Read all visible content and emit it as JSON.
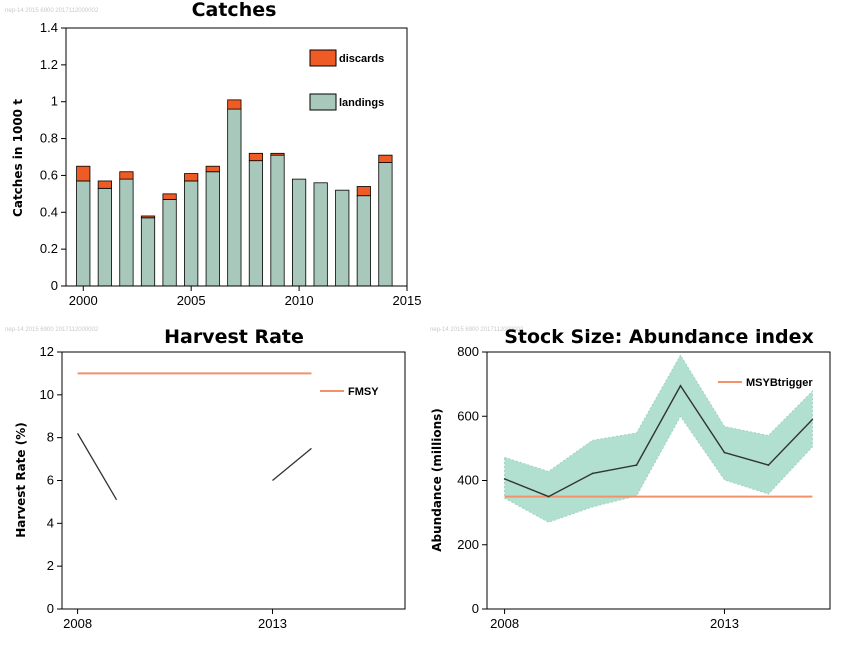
{
  "watermarks": {
    "catches": "nep-14 2015 6900 2017112000002",
    "harvest": "nep-14 2015 6900 2017112000002",
    "stock": "nep-14 2015 6900 2017112000002"
  },
  "colors": {
    "landings": "#a8c8bb",
    "discards": "#ef5b25",
    "reference_line": "#f2926b",
    "band": "#b1e0d0",
    "series_line": "#333333"
  },
  "chart_data": [
    {
      "type": "bar",
      "title": "Catches",
      "ylabel": "Catches in 1000 t",
      "xlim": [
        1999.2,
        2015
      ],
      "ylim": [
        0,
        1.4
      ],
      "x_ticks": [
        2000,
        2005,
        2010,
        2015
      ],
      "y_ticks": [
        0,
        0.2,
        0.4,
        0.6,
        0.8,
        1,
        1.2,
        1.4
      ],
      "y_tick_labels": [
        "0",
        "0.2",
        "0.4",
        "0.6",
        "0.8",
        "1",
        "1.2",
        "1.4"
      ],
      "legend_position": "top-right",
      "categories": [
        2000,
        2001,
        2002,
        2003,
        2004,
        2005,
        2006,
        2007,
        2008,
        2009,
        2010,
        2011,
        2012,
        2013,
        2014
      ],
      "series": [
        {
          "name": "landings",
          "values": [
            0.57,
            0.53,
            0.58,
            0.37,
            0.47,
            0.57,
            0.62,
            0.96,
            0.68,
            0.71,
            0.58,
            0.56,
            0.52,
            0.49,
            0.67
          ]
        },
        {
          "name": "discards",
          "values": [
            0.08,
            0.04,
            0.04,
            0.01,
            0.03,
            0.04,
            0.03,
            0.05,
            0.04,
            0.01,
            0.0,
            0.0,
            0.0,
            0.05,
            0.04
          ]
        }
      ]
    },
    {
      "type": "line",
      "title": "Harvest Rate",
      "ylabel": "Harvest Rate (%)",
      "xlim": [
        2007.6,
        2016.4
      ],
      "ylim": [
        0,
        12
      ],
      "x_ticks": [
        2008,
        2013
      ],
      "y_ticks": [
        0,
        2,
        4,
        6,
        8,
        10,
        12
      ],
      "legend_position": "top-right",
      "series": [
        {
          "x": [
            2008,
            2009
          ],
          "y": [
            8.2,
            5.1
          ]
        },
        {
          "x": [
            2013,
            2014
          ],
          "y": [
            6.0,
            7.5
          ]
        }
      ],
      "reference": {
        "name": "FMSY",
        "value": 11,
        "x": [
          2008,
          2014
        ]
      }
    },
    {
      "type": "area",
      "title": "Stock Size: Abundance index",
      "ylabel": "Abundance (millions)",
      "xlim": [
        2007.6,
        2015.4
      ],
      "ylim": [
        0,
        800
      ],
      "x_ticks": [
        2008,
        2013
      ],
      "y_ticks": [
        0,
        200,
        400,
        600,
        800
      ],
      "legend_position": "top-right",
      "series": [
        {
          "x": [
            2008,
            2009,
            2010,
            2011,
            2012,
            2013,
            2014,
            2015
          ],
          "y": [
            405,
            350,
            422,
            448,
            695,
            487,
            448,
            590
          ],
          "lower": [
            345,
            270,
            318,
            352,
            600,
            402,
            358,
            505
          ],
          "upper": [
            472,
            428,
            525,
            548,
            790,
            568,
            540,
            678
          ]
        }
      ],
      "reference": {
        "name": "MSYBtrigger",
        "value": 350,
        "x": [
          2008,
          2015
        ]
      }
    }
  ]
}
